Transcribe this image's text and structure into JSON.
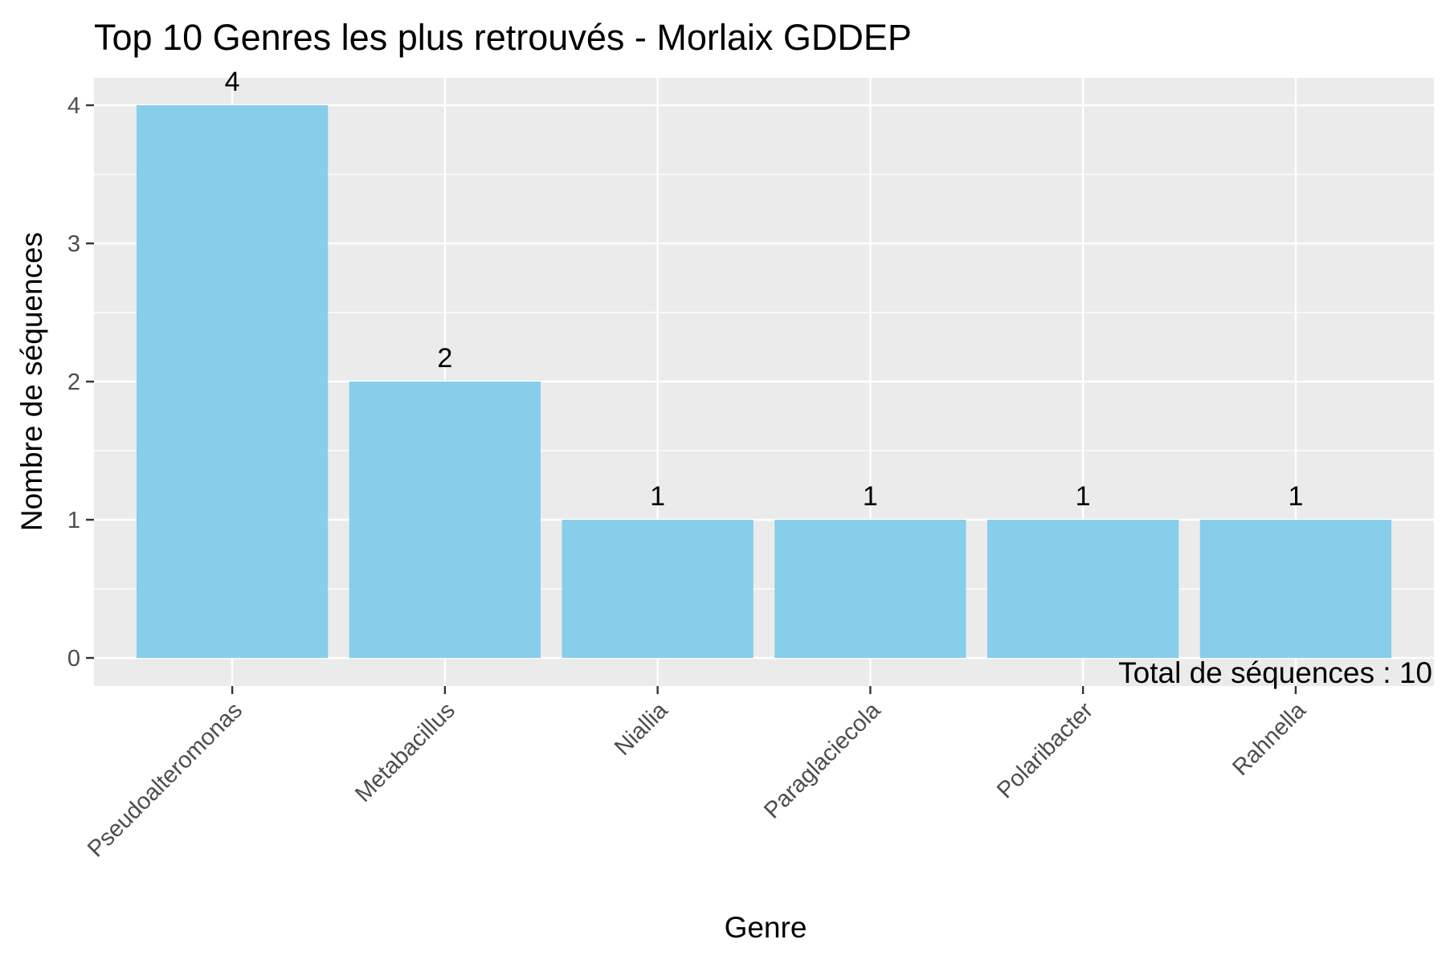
{
  "chart_data": {
    "type": "bar",
    "title": "Top 10 Genres les plus retrouvés - Morlaix GDDEP",
    "xlabel": "Genre",
    "ylabel": "Nombre de séquences",
    "categories": [
      "Pseudoalteromonas",
      "Metabacillus",
      "Niallia",
      "Paraglaciecola",
      "Polaribacter",
      "Rahnella"
    ],
    "values": [
      4,
      2,
      1,
      1,
      1,
      1
    ],
    "data_labels": [
      "4",
      "2",
      "1",
      "1",
      "1",
      "1"
    ],
    "y_ticks": [
      0,
      1,
      2,
      3,
      4
    ],
    "ylim": [
      0,
      4.2
    ],
    "grid": true,
    "legend": "none",
    "bar_color": "#87CEEB",
    "panel_color": "#EBEBEB",
    "gridline_color": "#FFFFFF",
    "annotation": "Total de séquences : 10"
  }
}
